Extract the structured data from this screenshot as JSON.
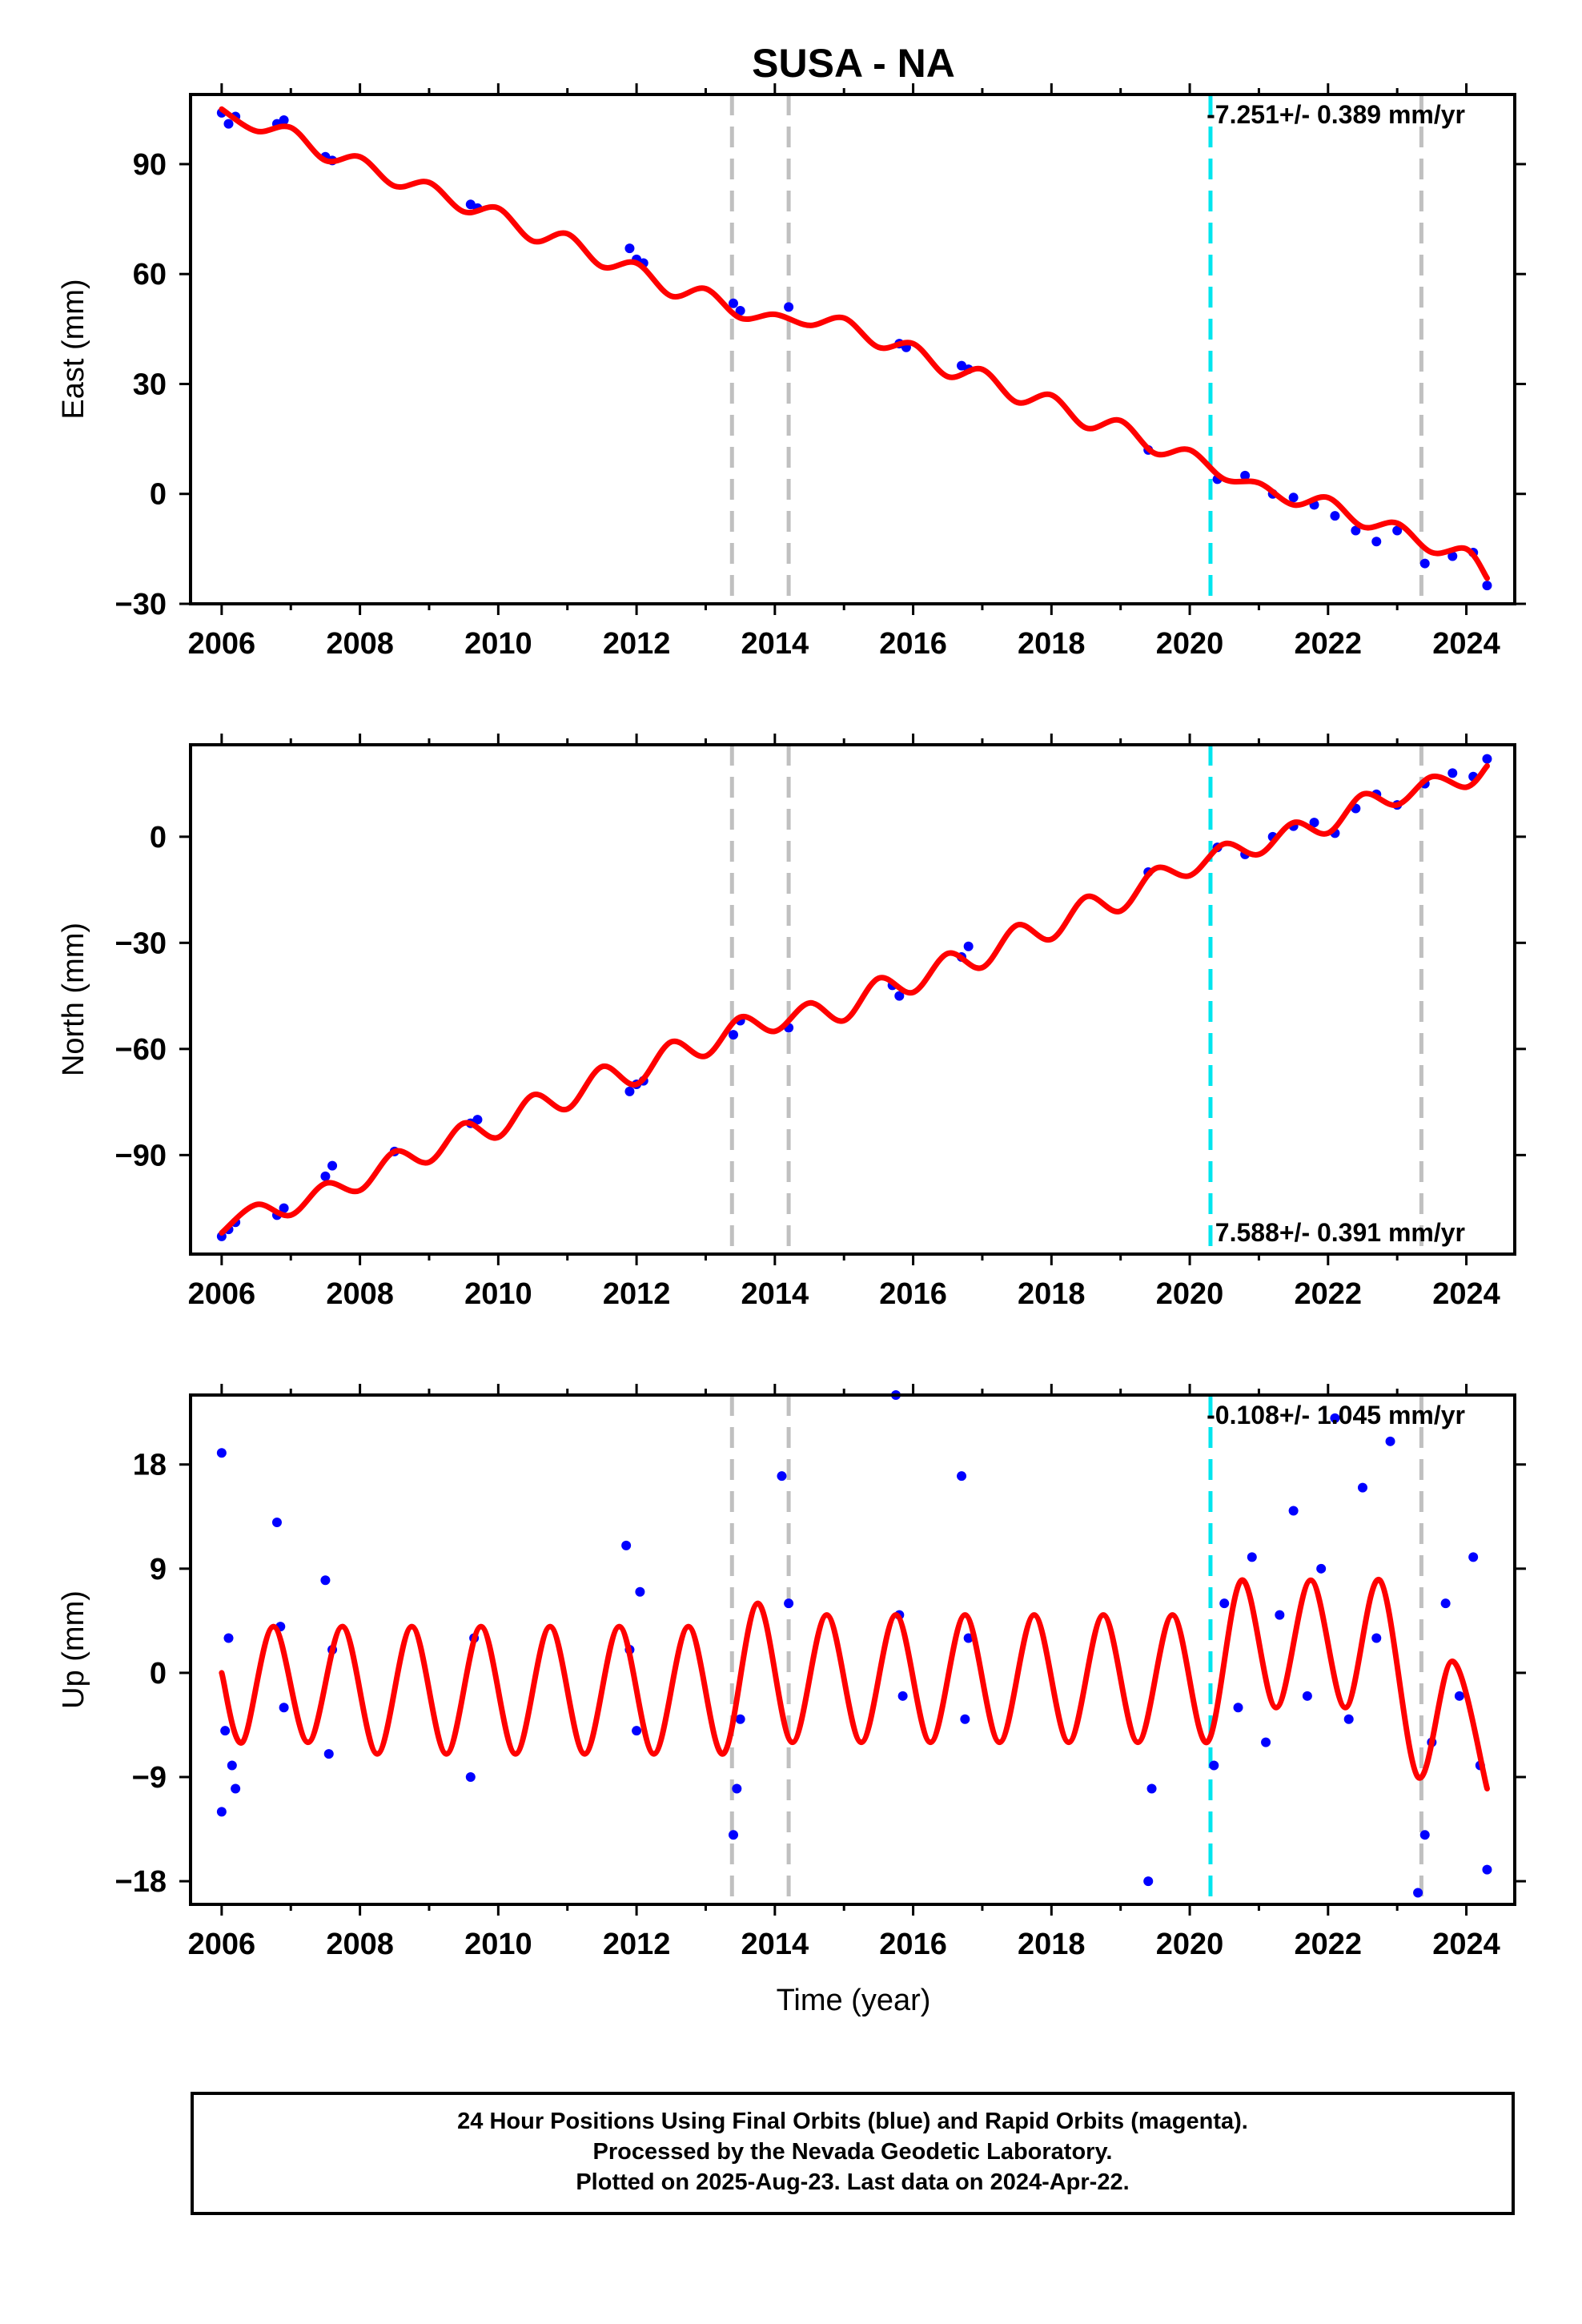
{
  "title": "SUSA - NA",
  "xlabel": "Time (year)",
  "colors": {
    "data": "#0000ff",
    "model": "#ff0000",
    "gray_line": "#c0c0c0",
    "cyan_line": "#00e5ee"
  },
  "footer": {
    "line1": "24 Hour Positions Using Final Orbits (blue) and Rapid Orbits (magenta).",
    "line2": "Processed by the Nevada Geodetic Laboratory.",
    "line3": "Plotted on 2025-Aug-23. Last data on 2024-Apr-22."
  },
  "chart_data": [
    {
      "type": "scatter",
      "ylabel": "East (mm)",
      "rate_label": "-7.251+/- 0.389 mm/yr",
      "rate_position": "top-right",
      "xlim": [
        2005.55,
        2024.7
      ],
      "ylim": [
        -30,
        109
      ],
      "xticks": [
        "2006",
        "2008",
        "2010",
        "2012",
        "2014",
        "2016",
        "2018",
        "2020",
        "2022",
        "2024"
      ],
      "yticks": [
        "-30",
        "0",
        "30",
        "60",
        "90"
      ],
      "ytick_values": [
        -30,
        0,
        30,
        60,
        90
      ],
      "vlines": [
        {
          "x": 2013.38,
          "style": "gray"
        },
        {
          "x": 2014.2,
          "style": "gray"
        },
        {
          "x": 2020.3,
          "style": "cyan"
        },
        {
          "x": 2023.35,
          "style": "gray"
        }
      ],
      "series": [
        {
          "kind": "points",
          "x": [
            2006.0,
            2006.1,
            2006.2,
            2006.8,
            2006.9,
            2007.5,
            2007.6,
            2009.6,
            2009.7,
            2011.9,
            2012.0,
            2012.1,
            2013.4,
            2013.5,
            2014.2,
            2015.8,
            2015.9,
            2016.7,
            2016.8,
            2019.4,
            2020.4,
            2020.8,
            2021.2,
            2021.5,
            2021.8,
            2022.1,
            2022.4,
            2022.7,
            2023.0,
            2023.4,
            2023.8,
            2024.1,
            2024.3
          ],
          "y": [
            104,
            101,
            103,
            101,
            102,
            92,
            91,
            79,
            78,
            67,
            64,
            63,
            52,
            50,
            51,
            41,
            40,
            35,
            34,
            12,
            4,
            5,
            0,
            -1,
            -3,
            -6,
            -10,
            -13,
            -10,
            -19,
            -17,
            -16,
            -25
          ]
        },
        {
          "kind": "line",
          "x": [
            2006.0,
            2006.5,
            2007.0,
            2007.5,
            2008.0,
            2008.5,
            2009.0,
            2009.5,
            2010.0,
            2010.5,
            2011.0,
            2011.5,
            2012.0,
            2012.5,
            2013.0,
            2013.5,
            2014.0,
            2014.5,
            2015.0,
            2015.5,
            2016.0,
            2016.5,
            2017.0,
            2017.5,
            2018.0,
            2018.5,
            2019.0,
            2019.5,
            2020.0,
            2020.5,
            2021.0,
            2021.5,
            2022.0,
            2022.5,
            2023.0,
            2023.5,
            2024.0,
            2024.3
          ],
          "y": [
            105,
            99,
            100,
            91,
            92,
            84,
            85,
            77,
            78,
            69,
            71,
            62,
            63,
            54,
            56,
            48,
            49,
            46,
            48,
            40,
            41,
            32,
            34,
            25,
            27,
            18,
            20,
            11,
            12,
            4,
            3,
            -3,
            -1,
            -9,
            -8,
            -16,
            -15,
            -23
          ]
        }
      ]
    },
    {
      "type": "scatter",
      "ylabel": "North (mm)",
      "rate_label": "7.588+/- 0.391 mm/yr",
      "rate_position": "bottom-right",
      "xlim": [
        2005.55,
        2024.7
      ],
      "ylim": [
        -118,
        26
      ],
      "xticks": [
        "2006",
        "2008",
        "2010",
        "2012",
        "2014",
        "2016",
        "2018",
        "2020",
        "2022",
        "2024"
      ],
      "yticks": [
        "-90",
        "-60",
        "-30",
        "0"
      ],
      "ytick_values": [
        -90,
        -60,
        -30,
        0
      ],
      "vlines": [
        {
          "x": 2013.38,
          "style": "gray"
        },
        {
          "x": 2014.2,
          "style": "gray"
        },
        {
          "x": 2020.3,
          "style": "cyan"
        },
        {
          "x": 2023.35,
          "style": "gray"
        }
      ],
      "series": [
        {
          "kind": "points",
          "x": [
            2006.0,
            2006.1,
            2006.2,
            2006.8,
            2006.9,
            2007.5,
            2007.6,
            2008.5,
            2009.6,
            2009.7,
            2011.9,
            2012.0,
            2012.1,
            2013.4,
            2013.5,
            2014.2,
            2015.7,
            2015.8,
            2016.7,
            2016.8,
            2019.4,
            2020.4,
            2020.8,
            2021.2,
            2021.5,
            2021.8,
            2022.1,
            2022.4,
            2022.7,
            2023.0,
            2023.4,
            2023.8,
            2024.1,
            2024.3
          ],
          "y": [
            -113,
            -111,
            -109,
            -107,
            -105,
            -96,
            -93,
            -89,
            -81,
            -80,
            -72,
            -70,
            -69,
            -56,
            -52,
            -54,
            -42,
            -45,
            -34,
            -31,
            -10,
            -3,
            -5,
            0,
            3,
            4,
            1,
            8,
            12,
            9,
            15,
            18,
            17,
            22
          ]
        },
        {
          "kind": "line",
          "x": [
            2006.0,
            2006.5,
            2007.0,
            2007.5,
            2008.0,
            2008.5,
            2009.0,
            2009.5,
            2010.0,
            2010.5,
            2011.0,
            2011.5,
            2012.0,
            2012.5,
            2013.0,
            2013.5,
            2014.0,
            2014.5,
            2015.0,
            2015.5,
            2016.0,
            2016.5,
            2017.0,
            2017.5,
            2018.0,
            2018.5,
            2019.0,
            2019.5,
            2020.0,
            2020.5,
            2021.0,
            2021.5,
            2022.0,
            2022.5,
            2023.0,
            2023.5,
            2024.0,
            2024.3
          ],
          "y": [
            -112,
            -104,
            -107,
            -98,
            -100,
            -89,
            -92,
            -81,
            -85,
            -73,
            -77,
            -65,
            -70,
            -58,
            -62,
            -51,
            -55,
            -47,
            -52,
            -40,
            -44,
            -33,
            -37,
            -25,
            -29,
            -17,
            -21,
            -9,
            -11,
            -2,
            -5,
            4,
            1,
            12,
            9,
            17,
            14,
            20
          ]
        }
      ]
    },
    {
      "type": "scatter",
      "ylabel": "Up (mm)",
      "rate_label": "-0.108+/- 1.045 mm/yr",
      "rate_position": "top-right",
      "xlim": [
        2005.55,
        2024.7
      ],
      "ylim": [
        -20,
        24
      ],
      "xticks": [
        "2006",
        "2008",
        "2010",
        "2012",
        "2014",
        "2016",
        "2018",
        "2020",
        "2022",
        "2024"
      ],
      "yticks": [
        "-18",
        "-9",
        "0",
        "9",
        "18"
      ],
      "ytick_values": [
        -18,
        -9,
        0,
        9,
        18
      ],
      "vlines": [
        {
          "x": 2013.38,
          "style": "gray"
        },
        {
          "x": 2014.2,
          "style": "gray"
        },
        {
          "x": 2020.3,
          "style": "cyan"
        },
        {
          "x": 2023.35,
          "style": "gray"
        }
      ],
      "series": [
        {
          "kind": "points",
          "x": [
            2006.0,
            2006.0,
            2006.05,
            2006.1,
            2006.15,
            2006.2,
            2006.8,
            2006.85,
            2006.9,
            2007.5,
            2007.55,
            2007.6,
            2009.6,
            2009.65,
            2011.85,
            2011.9,
            2012.0,
            2012.05,
            2013.4,
            2013.45,
            2013.5,
            2014.1,
            2014.2,
            2015.75,
            2015.8,
            2015.85,
            2016.7,
            2016.75,
            2016.8,
            2019.4,
            2019.45,
            2020.35,
            2020.5,
            2020.7,
            2020.9,
            2021.1,
            2021.3,
            2021.5,
            2021.7,
            2021.9,
            2022.1,
            2022.3,
            2022.5,
            2022.7,
            2022.9,
            2023.3,
            2023.4,
            2023.5,
            2023.7,
            2023.9,
            2024.1,
            2024.2,
            2024.3
          ],
          "y": [
            -12,
            19,
            -5,
            3,
            -8,
            -10,
            13,
            4,
            -3,
            8,
            -7,
            2,
            -9,
            3,
            11,
            2,
            -5,
            7,
            -14,
            -10,
            -4,
            17,
            6,
            24,
            5,
            -2,
            17,
            -4,
            3,
            -18,
            -10,
            -8,
            6,
            -3,
            10,
            -6,
            5,
            14,
            -2,
            9,
            22,
            -4,
            16,
            3,
            20,
            -19,
            -14,
            -6,
            6,
            -2,
            10,
            -8,
            -17
          ]
        },
        {
          "kind": "line",
          "x": [
            2006.0,
            2006.3,
            2006.75,
            2007.25,
            2007.75,
            2008.25,
            2008.75,
            2009.25,
            2009.75,
            2010.25,
            2010.75,
            2011.25,
            2011.75,
            2012.25,
            2012.75,
            2013.25,
            2013.75,
            2014.25,
            2014.75,
            2015.25,
            2015.75,
            2016.25,
            2016.75,
            2017.25,
            2017.75,
            2018.25,
            2018.75,
            2019.25,
            2019.75,
            2020.25,
            2020.75,
            2021.25,
            2021.75,
            2022.25,
            2022.75,
            2023.3,
            2023.8,
            2024.3
          ],
          "y": [
            0,
            -6,
            4,
            -6,
            4,
            -7,
            4,
            -7,
            4,
            -7,
            4,
            -7,
            4,
            -7,
            4,
            -7,
            6,
            -6,
            5,
            -6,
            5,
            -6,
            5,
            -6,
            5,
            -6,
            5,
            -6,
            5,
            -6,
            8,
            -3,
            8,
            -3,
            8,
            -9,
            1,
            -10
          ]
        }
      ]
    }
  ]
}
